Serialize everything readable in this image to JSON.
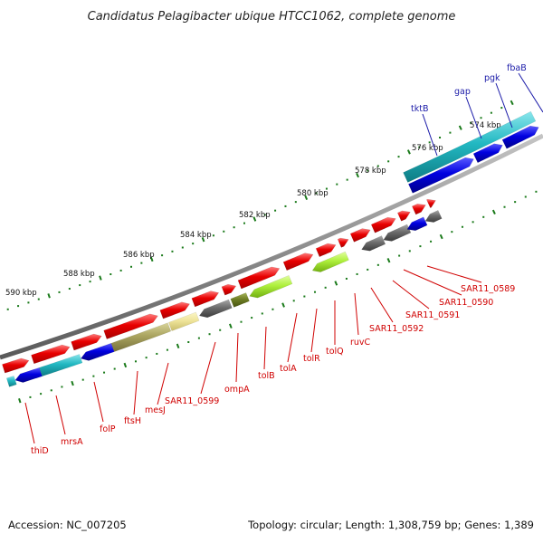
{
  "title": "Candidatus Pelagibacter ubique HTCC1062, complete genome",
  "footer": {
    "accession": "Accession: NC_007205",
    "summary": "Topology: circular; Length: 1,308,759 bp; Genes: 1,389"
  },
  "colors": {
    "backbone": "#8f8f8f",
    "tick": "#1a7a1a",
    "forward_gene": "#e80000",
    "reverse_gene_blue": "#0000e0",
    "reverse_gene_cyan": "#22b8c2",
    "gray_gene": "#6c6c6c",
    "label_blue": "#1a1aa8",
    "label_red": "#d00000"
  },
  "scale_labels": [
    "590 kbp",
    "588 kbp",
    "586 kbp",
    "584 kbp",
    "582 kbp",
    "580 kbp",
    "578 kbp",
    "576 kbp",
    "574 kbp"
  ],
  "gene_labels_outer": [
    "tktB",
    "gap",
    "pgk",
    "fbaB"
  ],
  "gene_labels_inner": [
    "thiD",
    "mrsA",
    "folP",
    "ftsH",
    "mesJ",
    "SAR11_0599",
    "ompA",
    "tolB",
    "tolA",
    "tolR",
    "tolQ",
    "ruvC",
    "SAR11_0592",
    "SAR11_0591",
    "SAR11_0590",
    "SAR11_0589"
  ]
}
